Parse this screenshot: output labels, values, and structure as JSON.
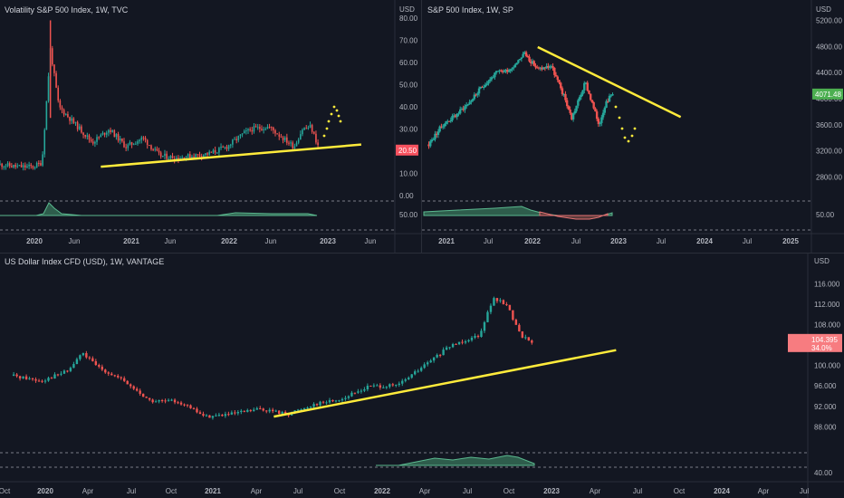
{
  "panes": [
    {
      "id": "vix",
      "title": "Volatility S&P 500 Index, 1W, TVC",
      "currency": "USD",
      "y_ticks": [
        "80.00",
        "70.00",
        "60.00",
        "50.00",
        "40.00",
        "30.00",
        "20.00",
        "10.00",
        "0.00"
      ],
      "osc_tick": "50.00",
      "x_ticks": [
        "2020",
        "Jun",
        "2021",
        "Jun",
        "2022",
        "Jun",
        "2023",
        "Jun"
      ],
      "last_price": "20.50",
      "colors": {
        "up": "#26a69a",
        "down": "#ef5350",
        "trend": "#ffeb3b",
        "osc_fill": "#2e5d4c",
        "osc_line": "#5bb98f"
      }
    },
    {
      "id": "spx",
      "title": "S&P 500 Index, 1W, SP",
      "currency": "USD",
      "y_ticks": [
        "5200.00",
        "4800.00",
        "4400.00",
        "4000.00",
        "3600.00",
        "3200.00",
        "2800.00"
      ],
      "osc_tick": "50.00",
      "x_ticks": [
        "2021",
        "Jul",
        "2022",
        "Jul",
        "2023",
        "Jul",
        "2024",
        "Jul",
        "2025"
      ],
      "last_price": "4071.48",
      "colors": {
        "up": "#26a69a",
        "down": "#ef5350",
        "trend": "#ffeb3b",
        "tag": "#4caf50"
      }
    },
    {
      "id": "dxy",
      "title": "US Dollar Index CFD (USD), 1W, VANTAGE",
      "currency": "USD",
      "y_ticks": [
        "116.000",
        "112.000",
        "108.000",
        "104.000",
        "100.000",
        "96.000",
        "92.000",
        "88.000"
      ],
      "osc_tick": "40.00",
      "x_ticks": [
        "Oct",
        "2020",
        "Apr",
        "Jul",
        "Oct",
        "2021",
        "Apr",
        "Jul",
        "Oct",
        "2022",
        "Apr",
        "Jul",
        "Oct",
        "2023",
        "Apr",
        "Jul",
        "Oct",
        "2024",
        "Apr",
        "Jul"
      ],
      "last_price": "104.395",
      "last_price_sub": "34.0%",
      "colors": {
        "up": "#26a69a",
        "down": "#ef5350",
        "trend": "#ffeb3b",
        "tag": "#f77c80"
      }
    }
  ],
  "chart_data": [
    {
      "type": "candlestick",
      "title": "Volatility S&P 500 Index, 1W, TVC",
      "ylim": [
        0,
        80
      ],
      "x_range": [
        "2019-09",
        "2023-08"
      ],
      "series": [
        {
          "name": "Volatility S&P 500 Index",
          "x": [
            "2019-09",
            "2019-11",
            "2020-01",
            "2020-02",
            "2020-03",
            "2020-04",
            "2020-06",
            "2020-08",
            "2020-10",
            "2020-12",
            "2021-02",
            "2021-04",
            "2021-06",
            "2021-08",
            "2021-10",
            "2021-12",
            "2022-02",
            "2022-03",
            "2022-05",
            "2022-06",
            "2022-08",
            "2022-09",
            "2022-10",
            "2022-11"
          ],
          "values": [
            14,
            13,
            13,
            15,
            66,
            40,
            32,
            24,
            30,
            22,
            26,
            18,
            17,
            18,
            19,
            22,
            28,
            30,
            31,
            28,
            22,
            30,
            31,
            21
          ]
        }
      ],
      "trendline": {
        "from": {
          "x": "2020-09",
          "y": 13
        },
        "to": {
          "x": "2023-04",
          "y": 23
        }
      }
    },
    {
      "type": "candlestick",
      "title": "S&P 500 Index, 1W, SP",
      "ylim": [
        2600,
        5400
      ],
      "x_range": [
        "2020-08",
        "2025-06"
      ],
      "series": [
        {
          "name": "S&P 500 Index",
          "x": [
            "2020-09",
            "2020-11",
            "2021-01",
            "2021-03",
            "2021-05",
            "2021-07",
            "2021-09",
            "2021-11",
            "2022-01",
            "2022-03",
            "2022-05",
            "2022-06",
            "2022-08",
            "2022-10",
            "2022-11",
            "2022-12"
          ],
          "values": [
            3300,
            3600,
            3750,
            3950,
            4200,
            4400,
            4450,
            4700,
            4450,
            4500,
            4000,
            3700,
            4250,
            3600,
            3950,
            4071.48
          ]
        }
      ],
      "trendline": {
        "from": {
          "x": "2022-01",
          "y": 4790
        },
        "to": {
          "x": "2023-10",
          "y": 3720
        }
      }
    },
    {
      "type": "candlestick",
      "title": "US Dollar Index CFD (USD), 1W, VANTAGE",
      "ylim": [
        84,
        118
      ],
      "x_range": [
        "2019-09",
        "2024-08"
      ],
      "series": [
        {
          "name": "US Dollar Index CFD (USD)",
          "x": [
            "2019-10",
            "2019-12",
            "2020-02",
            "2020-03",
            "2020-04",
            "2020-06",
            "2020-08",
            "2020-10",
            "2020-12",
            "2021-02",
            "2021-04",
            "2021-06",
            "2021-08",
            "2021-10",
            "2021-12",
            "2022-02",
            "2022-04",
            "2022-06",
            "2022-08",
            "2022-09",
            "2022-10",
            "2022-11",
            "2022-12"
          ],
          "values": [
            98,
            97,
            99,
            102.5,
            100,
            97,
            93,
            93,
            90,
            90.5,
            91.5,
            90.5,
            92.5,
            93.5,
            96,
            96,
            100,
            104,
            106,
            113,
            112,
            106,
            104.395
          ]
        }
      ],
      "trendline": {
        "from": {
          "x": "2021-05",
          "y": 90
        },
        "to": {
          "x": "2023-06",
          "y": 103
        }
      }
    }
  ]
}
